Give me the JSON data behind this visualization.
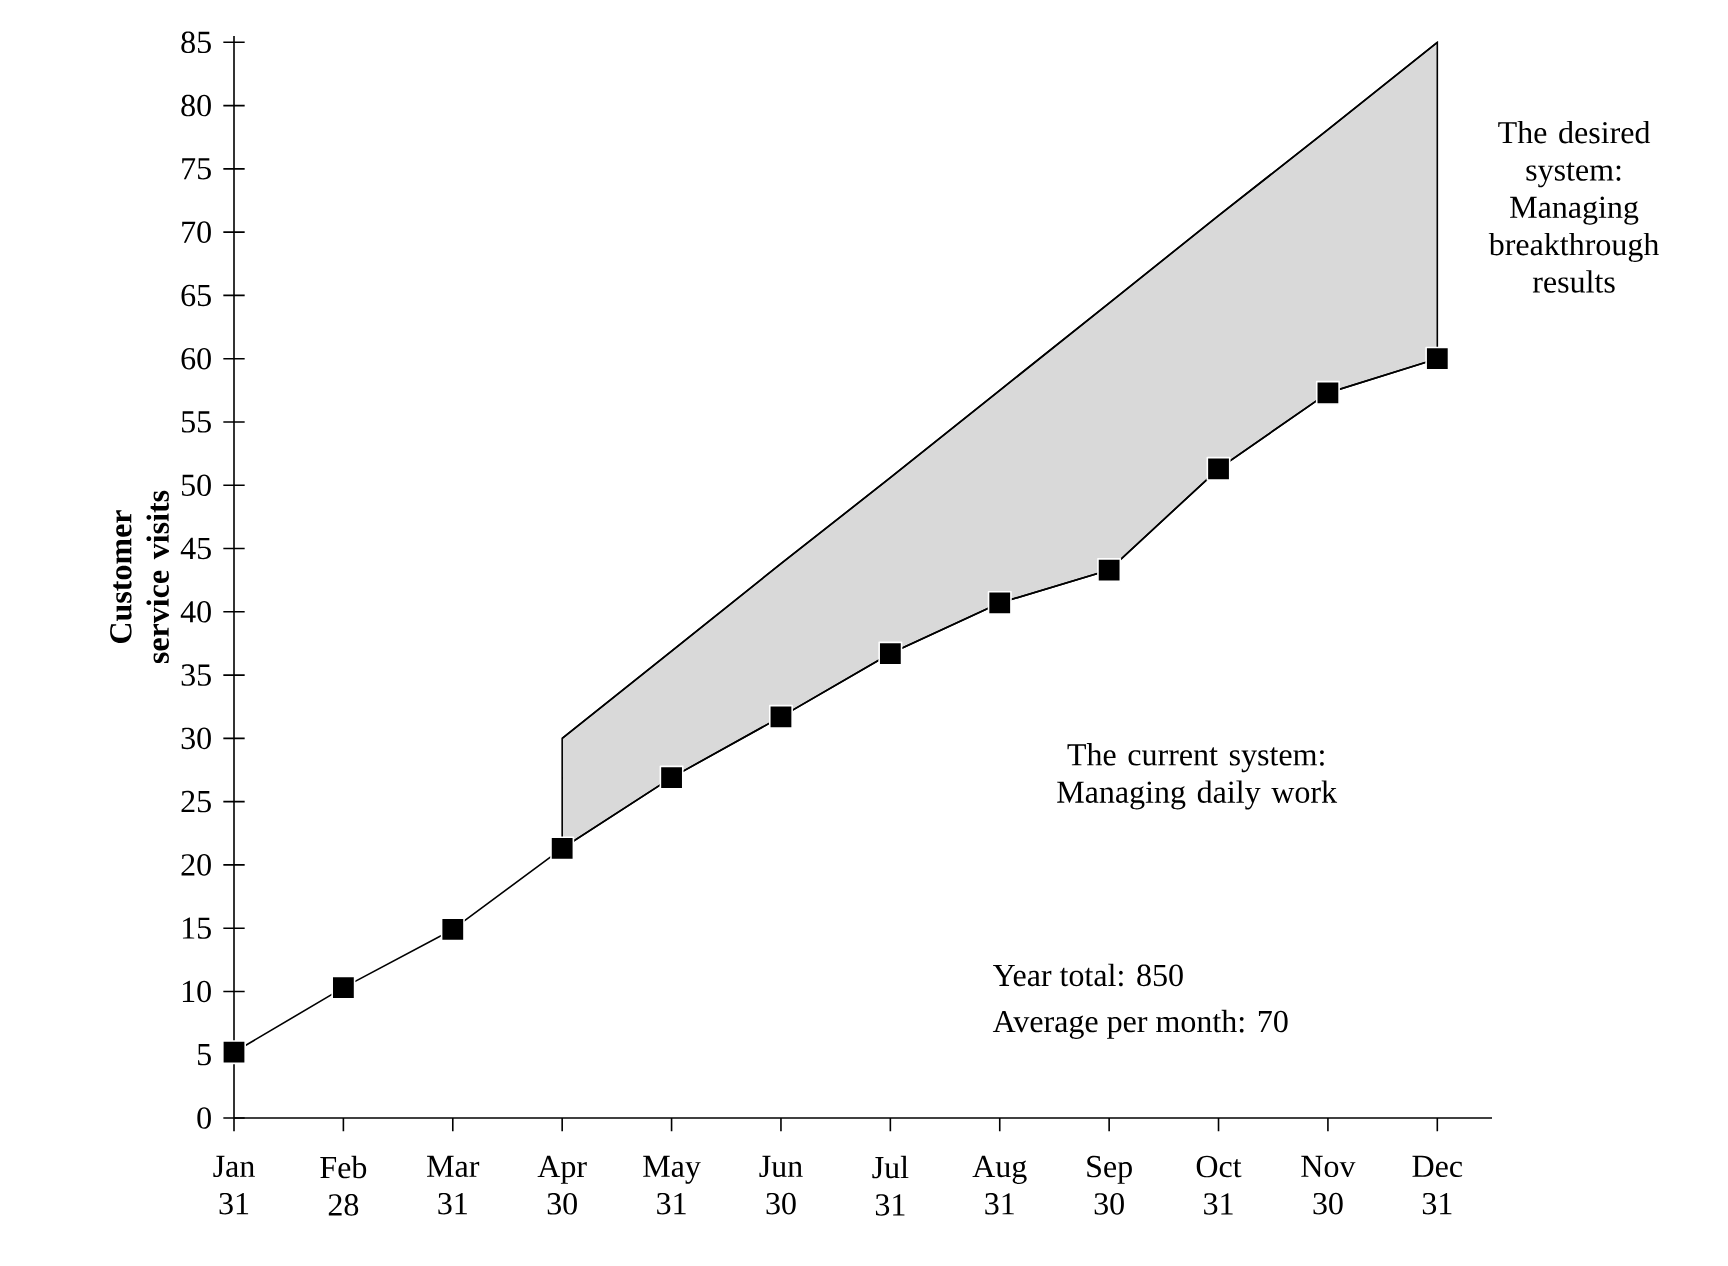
{
  "chart_data": {
    "type": "line",
    "ylabel": "Customer service visits",
    "categories": [
      "Jan 31",
      "Feb 28",
      "Mar 31",
      "Apr 30",
      "May 31",
      "Jun 30",
      "Jul 31",
      "Aug 31",
      "Sep 30",
      "Oct 31",
      "Nov 30",
      "Dec 31"
    ],
    "ylim": [
      0,
      85.5
    ],
    "yticks": [
      0,
      5,
      10,
      15,
      20,
      25,
      30,
      35,
      40,
      45,
      50,
      55,
      60,
      65,
      70,
      75,
      80,
      85
    ],
    "grid": false,
    "marker": "square",
    "line_style": "solid",
    "series": [
      {
        "color": "#000000",
        "values": [
          5.2,
          10.3,
          14.9,
          21.3,
          26.9,
          31.7,
          36.7,
          40.7,
          43.3,
          51.3,
          57.3,
          60
        ]
      },
      {
        "color": "#000000",
        "marker": "none",
        "values": [
          null,
          null,
          null,
          30,
          36.9,
          43.8,
          50.6,
          57.5,
          64.4,
          71.3,
          78.1,
          85
        ],
        "lower": [
          null,
          null,
          null,
          21.3,
          26.9,
          31.7,
          36.7,
          40.7,
          43.3,
          51.3,
          57.3,
          60
        ],
        "upper": [
          null,
          null,
          null,
          30,
          36.9,
          43.8,
          50.6,
          57.5,
          64.4,
          71.3,
          78.1,
          85
        ]
      }
    ],
    "annotations": [
      "The desired system: Managing breakthrough results",
      "The current system: Managing daily work",
      "Year total: 850",
      "Average per month: 70"
    ]
  }
}
